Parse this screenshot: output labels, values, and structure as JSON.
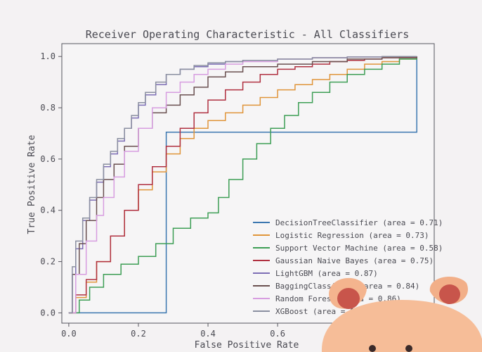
{
  "chart_data": {
    "type": "line",
    "title": "Receiver Operating Characteristic - All Classifiers",
    "xlabel": "False Positive Rate",
    "ylabel": "True Positive Rate",
    "xlim": [
      -0.02,
      1.05
    ],
    "ylim": [
      -0.04,
      1.05
    ],
    "xticks": [
      0.0,
      0.2,
      0.4,
      0.6,
      0.8,
      1.0
    ],
    "yticks": [
      0.0,
      0.2,
      0.4,
      0.6,
      0.8,
      1.0
    ],
    "xtick_labels": [
      "0.0",
      "0.2",
      "0.4",
      "0.6",
      "",
      ""
    ],
    "ytick_labels": [
      "0.0",
      "0.2",
      "0.4",
      "0.6",
      "0.8",
      "1.0"
    ],
    "grid": false,
    "legend_position": "lower-right",
    "series": [
      {
        "name": "DecisionTreeClassifier (area = 0.71)",
        "color": "#3b77b0",
        "x": [
          0,
          0.28,
          1.0
        ],
        "y": [
          0,
          0.705,
          1.0
        ]
      },
      {
        "name": "Logistic Regression (area = 0.73)",
        "color": "#e0953a",
        "x": [
          0,
          0.02,
          0.05,
          0.08,
          0.12,
          0.16,
          0.2,
          0.24,
          0.28,
          0.32,
          0.36,
          0.4,
          0.45,
          0.5,
          0.55,
          0.6,
          0.65,
          0.7,
          0.75,
          0.8,
          0.85,
          0.9,
          0.95,
          1.0
        ],
        "y": [
          0,
          0.06,
          0.12,
          0.2,
          0.3,
          0.4,
          0.48,
          0.55,
          0.62,
          0.68,
          0.72,
          0.75,
          0.78,
          0.81,
          0.84,
          0.87,
          0.89,
          0.91,
          0.93,
          0.95,
          0.97,
          0.98,
          0.99,
          1.0
        ]
      },
      {
        "name": "Support Vector Machine (area = 0.58)",
        "color": "#3d9e55",
        "x": [
          0,
          0.03,
          0.06,
          0.1,
          0.15,
          0.2,
          0.25,
          0.3,
          0.35,
          0.4,
          0.43,
          0.46,
          0.5,
          0.54,
          0.58,
          0.62,
          0.66,
          0.7,
          0.75,
          0.8,
          0.85,
          0.9,
          0.95,
          1.0
        ],
        "y": [
          0,
          0.05,
          0.1,
          0.15,
          0.19,
          0.22,
          0.27,
          0.33,
          0.37,
          0.39,
          0.45,
          0.52,
          0.6,
          0.66,
          0.72,
          0.77,
          0.82,
          0.86,
          0.9,
          0.93,
          0.95,
          0.97,
          0.99,
          1.0
        ]
      },
      {
        "name": "Gaussian Naive Bayes (area = 0.75)",
        "color": "#b03040",
        "x": [
          0,
          0.02,
          0.05,
          0.08,
          0.12,
          0.16,
          0.2,
          0.24,
          0.28,
          0.32,
          0.36,
          0.4,
          0.45,
          0.5,
          0.55,
          0.6,
          0.65,
          0.7,
          0.75,
          0.8,
          0.85,
          0.9,
          0.95,
          1.0
        ],
        "y": [
          0,
          0.07,
          0.13,
          0.2,
          0.3,
          0.4,
          0.5,
          0.57,
          0.65,
          0.72,
          0.78,
          0.83,
          0.87,
          0.9,
          0.93,
          0.95,
          0.96,
          0.97,
          0.98,
          0.985,
          0.99,
          0.995,
          0.998,
          1.0
        ]
      },
      {
        "name": "LightGBM (area = 0.87)",
        "color": "#7d6eb5",
        "x": [
          0,
          0.01,
          0.02,
          0.04,
          0.06,
          0.08,
          0.1,
          0.12,
          0.14,
          0.16,
          0.18,
          0.2,
          0.22,
          0.25,
          0.28,
          0.32,
          0.36,
          0.4,
          0.45,
          0.5,
          0.6,
          0.7,
          0.8,
          0.9,
          1.0
        ],
        "y": [
          0,
          0.15,
          0.25,
          0.36,
          0.44,
          0.51,
          0.57,
          0.62,
          0.67,
          0.72,
          0.76,
          0.81,
          0.85,
          0.89,
          0.93,
          0.95,
          0.96,
          0.97,
          0.98,
          0.985,
          0.99,
          0.995,
          0.998,
          1.0,
          1.0
        ]
      },
      {
        "name": "BaggingClassifier (area = 0.84)",
        "color": "#6a5050",
        "x": [
          0,
          0.01,
          0.03,
          0.05,
          0.08,
          0.1,
          0.13,
          0.16,
          0.2,
          0.24,
          0.28,
          0.32,
          0.36,
          0.4,
          0.45,
          0.5,
          0.6,
          0.7,
          0.8,
          0.9,
          1.0
        ],
        "y": [
          0,
          0.15,
          0.27,
          0.36,
          0.45,
          0.52,
          0.58,
          0.65,
          0.72,
          0.78,
          0.81,
          0.85,
          0.88,
          0.92,
          0.94,
          0.96,
          0.97,
          0.98,
          0.99,
          0.995,
          1.0
        ]
      },
      {
        "name": "Random Forest (area = 0.86)",
        "color": "#d79de0",
        "x": [
          0,
          0.02,
          0.05,
          0.08,
          0.1,
          0.13,
          0.16,
          0.2,
          0.24,
          0.28,
          0.32,
          0.36,
          0.4,
          0.45,
          0.5,
          0.6,
          0.7,
          0.8,
          0.9,
          1.0
        ],
        "y": [
          0,
          0.15,
          0.28,
          0.38,
          0.45,
          0.53,
          0.63,
          0.72,
          0.8,
          0.86,
          0.9,
          0.93,
          0.95,
          0.97,
          0.98,
          0.99,
          0.995,
          0.998,
          1.0,
          1.0
        ]
      },
      {
        "name": "XGBoost (area = 0.87)",
        "color": "#8a8fa0",
        "x": [
          0,
          0.01,
          0.02,
          0.04,
          0.06,
          0.08,
          0.1,
          0.12,
          0.14,
          0.16,
          0.18,
          0.2,
          0.22,
          0.25,
          0.28,
          0.32,
          0.36,
          0.4,
          0.45,
          0.5,
          0.6,
          0.7,
          0.8,
          0.9,
          1.0
        ],
        "y": [
          0,
          0.18,
          0.28,
          0.37,
          0.45,
          0.52,
          0.58,
          0.63,
          0.68,
          0.72,
          0.77,
          0.82,
          0.86,
          0.9,
          0.93,
          0.95,
          0.965,
          0.975,
          0.98,
          0.985,
          0.99,
          0.995,
          0.998,
          1.0,
          1.0
        ]
      }
    ]
  }
}
